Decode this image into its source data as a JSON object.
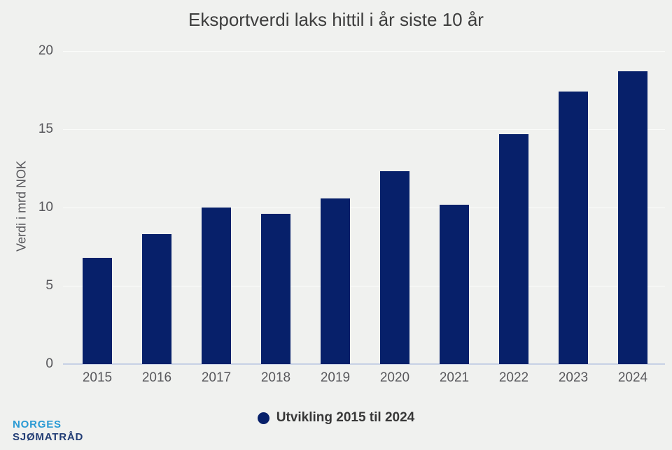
{
  "title": "Eksportverdi laks hittil i år siste 10 år",
  "chart_data": {
    "type": "bar",
    "categories": [
      "2015",
      "2016",
      "2017",
      "2018",
      "2019",
      "2020",
      "2021",
      "2022",
      "2023",
      "2024"
    ],
    "values": [
      6.8,
      8.3,
      10.0,
      9.6,
      10.6,
      12.3,
      10.2,
      14.7,
      17.4,
      18.7
    ],
    "title": "Eksportverdi laks hittil i år siste 10 år",
    "xlabel": "",
    "ylabel": "Verdi i mrd NOK",
    "ylim": [
      0,
      20
    ],
    "yticks": [
      0,
      5,
      10,
      15,
      20
    ],
    "grid": true,
    "legend_position": "bottom"
  },
  "legend": {
    "label": "Utvikling 2015 til 2024"
  },
  "logo": {
    "line1": "NORGES",
    "line2": "SJØMATRÅD"
  },
  "colors": {
    "background": "#f0f1ef",
    "bar": "#07206a",
    "gridline": "#fbfcfa",
    "baseline": "#c7d1e5",
    "axis_text": "#58585c",
    "title_text": "#3e3e3e",
    "legend_text": "#383838",
    "logo_blue": "#2a9ad4",
    "logo_navy": "#223d75"
  }
}
